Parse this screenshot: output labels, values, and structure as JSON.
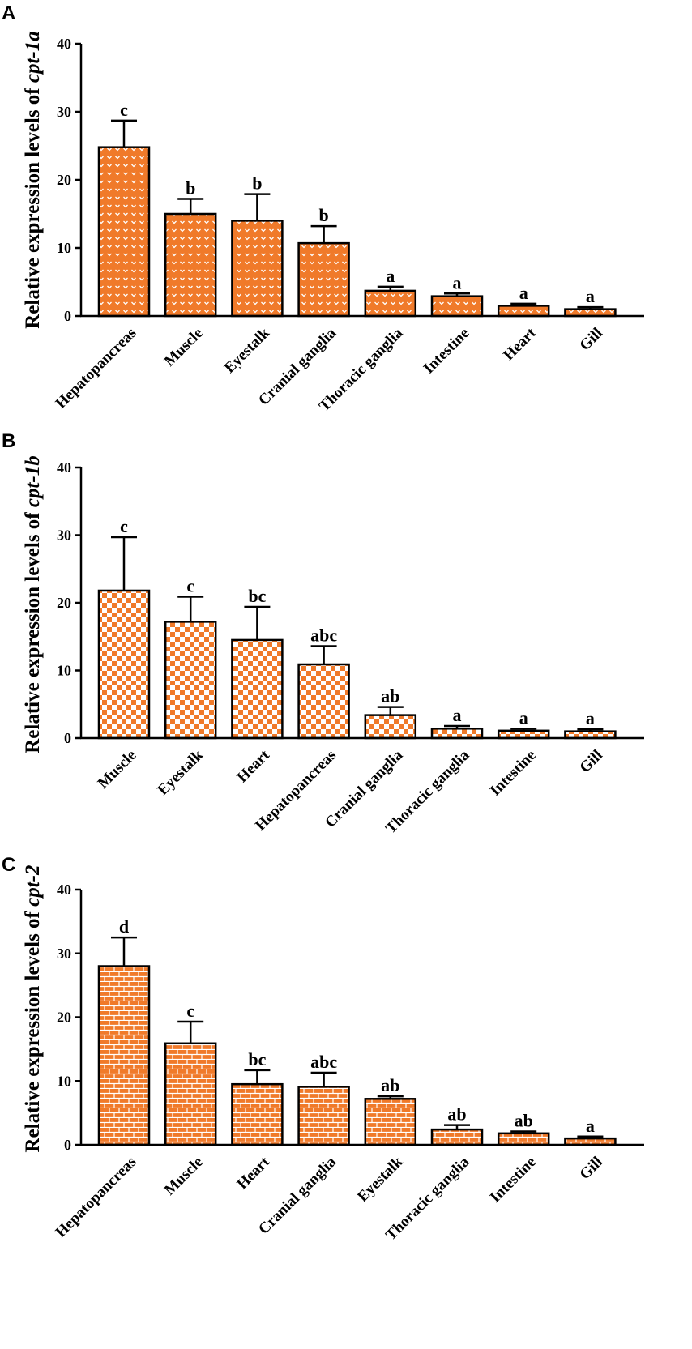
{
  "colors": {
    "bar_fill": "#F07A2A",
    "pattern_mark": "#FFFFFF",
    "axis": "#000000",
    "background": "#FFFFFF"
  },
  "chart_data": [
    {
      "type": "bar",
      "panel": "A",
      "ylabel_prefix": "Relative expression levels of ",
      "gene": "cpt-1a",
      "pattern": "chevrons",
      "ylim": [
        0,
        40
      ],
      "yticks": [
        0,
        10,
        20,
        30,
        40
      ],
      "categories": [
        "Hepatopancreas",
        "Muscle",
        "Eyestalk",
        "Cranial ganglia",
        "Thoracic ganglia",
        "Intestine",
        "Heart",
        "Gill"
      ],
      "values": [
        24.8,
        15.0,
        14.0,
        10.7,
        3.7,
        2.9,
        1.5,
        1.0
      ],
      "errors": [
        3.9,
        2.2,
        3.9,
        2.5,
        0.6,
        0.4,
        0.3,
        0.3
      ],
      "significance": [
        "c",
        "b",
        "b",
        "b",
        "a",
        "a",
        "a",
        "a"
      ]
    },
    {
      "type": "bar",
      "panel": "B",
      "ylabel_prefix": "Relative expression levels of ",
      "gene": "cpt-1b",
      "pattern": "checker",
      "ylim": [
        0,
        40
      ],
      "yticks": [
        0,
        10,
        20,
        30,
        40
      ],
      "categories": [
        "Muscle",
        "Eyestalk",
        "Heart",
        "Hepatopancreas",
        "Cranial ganglia",
        "Thoracic ganglia",
        "Intestine",
        "Gill"
      ],
      "values": [
        21.8,
        17.2,
        14.5,
        10.9,
        3.4,
        1.4,
        1.1,
        1.0
      ],
      "errors": [
        7.9,
        3.7,
        4.9,
        2.7,
        1.2,
        0.4,
        0.3,
        0.3
      ],
      "significance": [
        "c",
        "c",
        "bc",
        "abc",
        "ab",
        "a",
        "a",
        "a"
      ]
    },
    {
      "type": "bar",
      "panel": "C",
      "ylabel_prefix": "Relative expression levels of ",
      "gene": "cpt-2",
      "pattern": "bricks",
      "ylim": [
        0,
        40
      ],
      "yticks": [
        0,
        10,
        20,
        30,
        40
      ],
      "categories": [
        "Hepatopancreas",
        "Muscle",
        "Heart",
        "Cranial ganglia",
        "Eyestalk",
        "Thoracic ganglia",
        "Intestine",
        "Gill"
      ],
      "values": [
        28.0,
        15.9,
        9.5,
        9.1,
        7.2,
        2.4,
        1.8,
        1.0
      ],
      "errors": [
        4.5,
        3.4,
        2.2,
        2.2,
        0.4,
        0.7,
        0.3,
        0.3
      ],
      "significance": [
        "d",
        "c",
        "bc",
        "abc",
        "ab",
        "ab",
        "ab",
        "a"
      ]
    }
  ]
}
